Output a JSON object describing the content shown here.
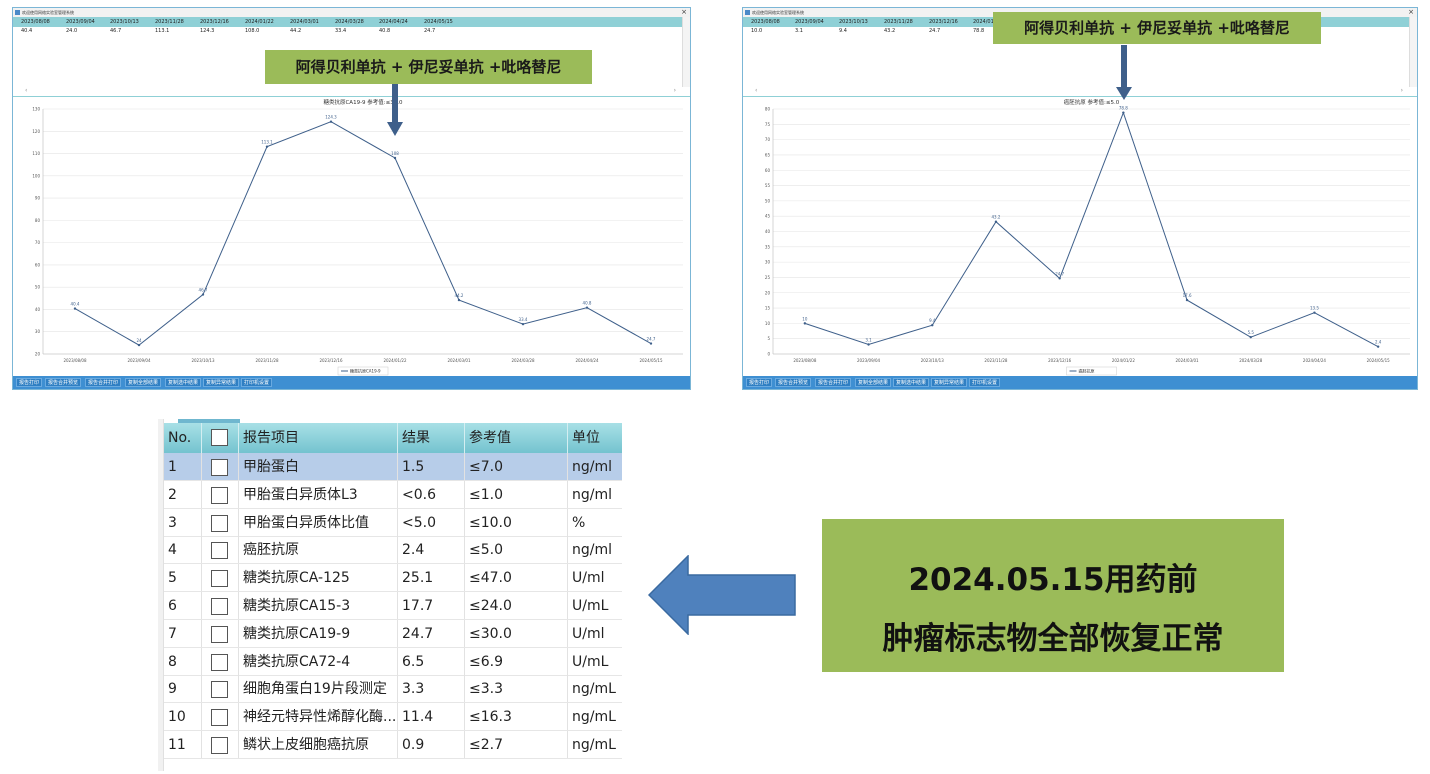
{
  "window1": {
    "title": "欢迎使用网络实验室管理系统",
    "dates": [
      "2023/08/08",
      "2023/09/04",
      "2023/10/13",
      "2023/11/28",
      "2023/12/16",
      "2024/01/22",
      "2024/03/01",
      "2024/03/28",
      "2024/04/24",
      "2024/05/15"
    ],
    "values": [
      "40.4",
      "24.0",
      "46.7",
      "113.1",
      "124.3",
      "108.0",
      "44.2",
      "33.4",
      "40.8",
      "24.7"
    ],
    "callout": "阿得贝利单抗 + 伊尼妥单抗 +吡咯替尼",
    "buttons": [
      "报告打印",
      "报告合并预览",
      "报告合并打印",
      "复制全部结果",
      "复制选中结果",
      "复制异常结果",
      "打印机设置"
    ]
  },
  "window2": {
    "title": "欢迎使用网络实验室管理系统",
    "dates": [
      "2023/08/08",
      "2023/09/04",
      "2023/10/13",
      "2023/11/28",
      "2023/12/16",
      "2024/01/22"
    ],
    "values": [
      "10.0",
      "3.1",
      "9.4",
      "43.2",
      "24.7",
      "78.8"
    ],
    "callout": "阿得贝利单抗 + 伊尼妥单抗 +吡咯替尼",
    "buttons": [
      "报告打印",
      "报告合并预览",
      "报告合并打印",
      "复制全部结果",
      "复制选中结果",
      "复制异常结果",
      "打印机设置"
    ]
  },
  "chart_data": [
    {
      "type": "line",
      "title": "糖类抗原CA19-9 参考值:≤30.0",
      "x": [
        "2023/08/08",
        "2023/09/04",
        "2023/10/13",
        "2023/11/28",
        "2023/12/16",
        "2024/01/22",
        "2024/03/01",
        "2024/03/28",
        "2024/04/24",
        "2024/05/15"
      ],
      "series": [
        {
          "name": "糖类抗原CA19-9",
          "values": [
            40.4,
            24.0,
            46.7,
            113.1,
            124.3,
            108.0,
            44.2,
            33.4,
            40.8,
            24.7
          ]
        }
      ],
      "ylim": [
        20,
        130
      ],
      "yticks": [
        20,
        30,
        40,
        50,
        60,
        70,
        80,
        90,
        100,
        110,
        120,
        130
      ],
      "grid": true,
      "legend": "bottom-center",
      "color": "#3e5f8a"
    },
    {
      "type": "line",
      "title": "癌胚抗原 参考值:≤5.0",
      "x": [
        "2023/08/08",
        "2023/09/04",
        "2023/10/13",
        "2023/11/28",
        "2023/12/16",
        "2024/01/22",
        "2024/03/01",
        "2024/03/28",
        "2024/04/24",
        "2024/05/15"
      ],
      "series": [
        {
          "name": "癌胚抗原",
          "values": [
            10.0,
            3.1,
            9.4,
            43.2,
            24.7,
            78.8,
            17.6,
            5.5,
            13.5,
            2.4
          ]
        }
      ],
      "ylim": [
        0,
        80
      ],
      "yticks": [
        0,
        5,
        10,
        15,
        20,
        25,
        30,
        35,
        40,
        45,
        50,
        55,
        60,
        65,
        70,
        75,
        80
      ],
      "grid": true,
      "legend": "bottom-center",
      "color": "#3e5f8a"
    }
  ],
  "table": {
    "headers": [
      "No.",
      "",
      "报告项目",
      "结果",
      "参考值",
      "单位"
    ],
    "rows": [
      {
        "no": "1",
        "item": "甲胎蛋白",
        "result": "1.5",
        "ref": "≤7.0",
        "unit": "ng/ml"
      },
      {
        "no": "2",
        "item": "甲胎蛋白异质体L3",
        "result": "<0.6",
        "ref": "≤1.0",
        "unit": "ng/ml"
      },
      {
        "no": "3",
        "item": "甲胎蛋白异质体比值",
        "result": "<5.0",
        "ref": "≤10.0",
        "unit": "%"
      },
      {
        "no": "4",
        "item": "癌胚抗原",
        "result": "2.4",
        "ref": "≤5.0",
        "unit": "ng/ml"
      },
      {
        "no": "5",
        "item": "糖类抗原CA-125",
        "result": "25.1",
        "ref": "≤47.0",
        "unit": "U/ml"
      },
      {
        "no": "6",
        "item": "糖类抗原CA15-3",
        "result": "17.7",
        "ref": "≤24.0",
        "unit": "U/mL"
      },
      {
        "no": "7",
        "item": "糖类抗原CA19-9",
        "result": "24.7",
        "ref": "≤30.0",
        "unit": "U/ml"
      },
      {
        "no": "8",
        "item": "糖类抗原CA72-4",
        "result": "6.5",
        "ref": "≤6.9",
        "unit": "U/mL"
      },
      {
        "no": "9",
        "item": "细胞角蛋白19片段测定",
        "result": "3.3",
        "ref": "≤3.3",
        "unit": "ng/mL"
      },
      {
        "no": "10",
        "item": "神经元特异性烯醇化酶...",
        "result": "11.4",
        "ref": "≤16.3",
        "unit": "ng/mL"
      },
      {
        "no": "11",
        "item": "鳞状上皮细胞癌抗原",
        "result": "0.9",
        "ref": "≤2.7",
        "unit": "ng/mL"
      }
    ]
  },
  "summary": {
    "line1": "2024.05.15用药前",
    "line2": "肿瘤标志物全部恢复正常"
  },
  "colors": {
    "callout_green": "#9bbb59",
    "arrow_blue": "#4f81bd",
    "header_teal": "#8fd0d6",
    "selected_row": "#b7cde9",
    "bottom_bar": "#3e8fd2"
  }
}
